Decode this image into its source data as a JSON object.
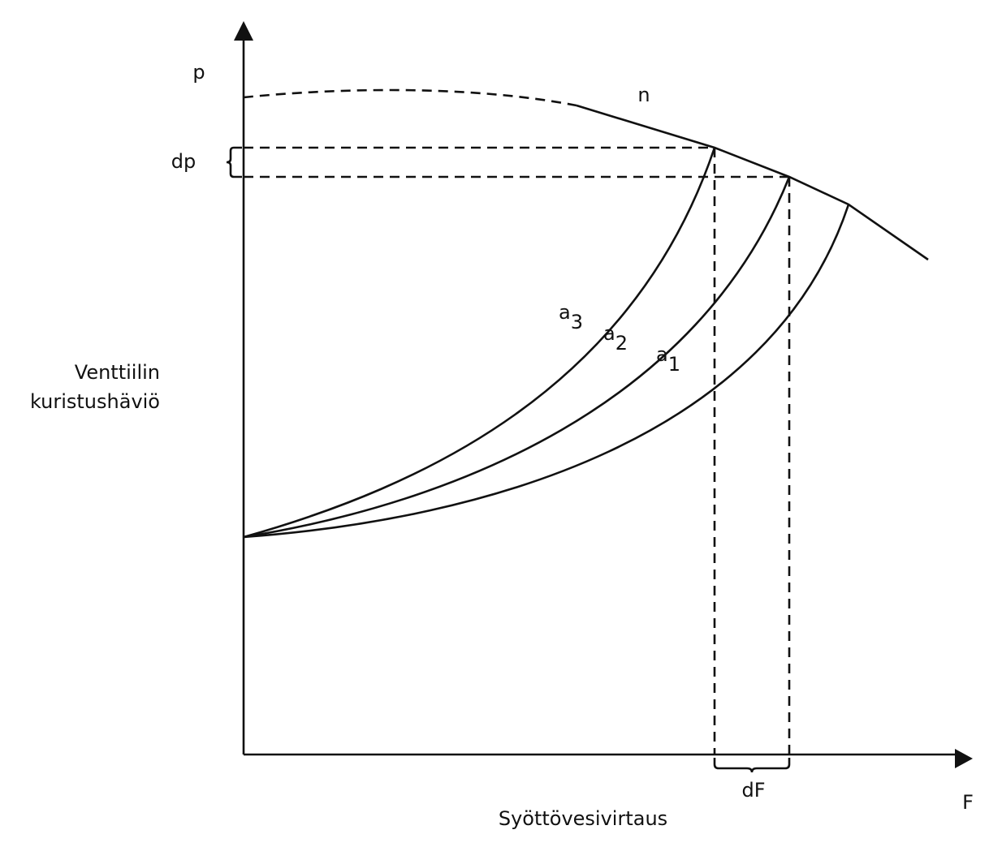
{
  "axes": {
    "y_symbol": "p",
    "x_symbol": "F",
    "y_title": [
      "Venttiilin",
      "kuristushäviö"
    ],
    "x_title": "Syöttövesivirtaus"
  },
  "pump_curve": {
    "label": "n"
  },
  "brackets": {
    "pressure": "dp",
    "flow": "dF"
  },
  "valve_curves": [
    {
      "base": "a",
      "sub": "3"
    },
    {
      "base": "a",
      "sub": "2"
    },
    {
      "base": "a",
      "sub": "1"
    }
  ]
}
